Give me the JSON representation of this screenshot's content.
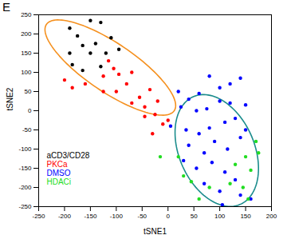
{
  "chart_data": {
    "type": "scatter",
    "title": "E",
    "x_label": "tSNE1",
    "y_label": "tSNE2",
    "xlim": [
      -250,
      200
    ],
    "ylim": [
      -250,
      250
    ],
    "xticks": [
      -250,
      -200,
      -150,
      -100,
      -50,
      0,
      50,
      100,
      150,
      200
    ],
    "yticks": [
      -250,
      -200,
      -150,
      -100,
      -50,
      0,
      50,
      100,
      150,
      200,
      250
    ],
    "grid": false,
    "legend": "bottom-left",
    "marker": "circle",
    "series": [
      {
        "name": "aCD3/CD28",
        "color": "#000000",
        "x": [
          -190,
          -175,
          -150,
          -130,
          -165,
          -140,
          -110,
          -190,
          -150,
          -120,
          -185,
          -165,
          -130,
          -95
        ],
        "values": [
          215,
          195,
          235,
          230,
          170,
          175,
          190,
          150,
          150,
          150,
          120,
          105,
          115,
          160
        ]
      },
      {
        "name": "PKCa",
        "color": "#ff0000",
        "x": [
          -200,
          -185,
          -160,
          -115,
          -105,
          -95,
          -125,
          -80,
          -100,
          -70,
          -55,
          -45,
          -70,
          -35,
          -25,
          -20,
          -10,
          0,
          -45,
          -30,
          -125
        ],
        "values": [
          80,
          60,
          70,
          130,
          110,
          95,
          90,
          70,
          50,
          100,
          35,
          10,
          20,
          55,
          -10,
          25,
          -35,
          -25,
          -15,
          -60,
          50
        ]
      },
      {
        "name": "DMSO",
        "color": "#0000ff",
        "x": [
          20,
          40,
          60,
          80,
          100,
          120,
          140,
          25,
          55,
          75,
          100,
          120,
          150,
          5,
          35,
          60,
          80,
          110,
          130,
          150,
          40,
          70,
          90,
          115,
          140,
          30,
          55,
          85,
          110,
          130,
          70,
          100,
          140,
          105,
          160
        ],
        "values": [
          50,
          30,
          45,
          90,
          60,
          70,
          85,
          10,
          0,
          5,
          25,
          20,
          15,
          -40,
          -50,
          -60,
          -45,
          -30,
          -20,
          -50,
          -90,
          -110,
          -80,
          -100,
          -70,
          -130,
          -150,
          -135,
          -160,
          -180,
          -190,
          -210,
          -220,
          -245,
          -230
        ]
      },
      {
        "name": "HDACi",
        "color": "#22dd22",
        "x": [
          -15,
          20,
          170,
          175,
          150,
          160,
          45,
          80,
          120,
          145,
          155,
          60,
          30,
          130
        ],
        "values": [
          -120,
          -120,
          -80,
          -110,
          -120,
          -155,
          -185,
          -200,
          -190,
          -200,
          -230,
          -230,
          -170,
          -140
        ]
      }
    ],
    "ellipses": [
      {
        "color": "#f5901e",
        "major": [
          [
            -235,
            225
          ],
          [
            12,
            0
          ]
        ],
        "minor": [
          [
            -137.5,
            60
          ],
          [
            -85,
            165
          ]
        ]
      },
      {
        "color": "#1a8c8c",
        "major": [
          [
            50.5,
            37.5
          ],
          [
            138,
            -245
          ]
        ],
        "minor": [
          [
            25,
            -144.6
          ],
          [
            162,
            -68
          ]
        ]
      }
    ]
  }
}
